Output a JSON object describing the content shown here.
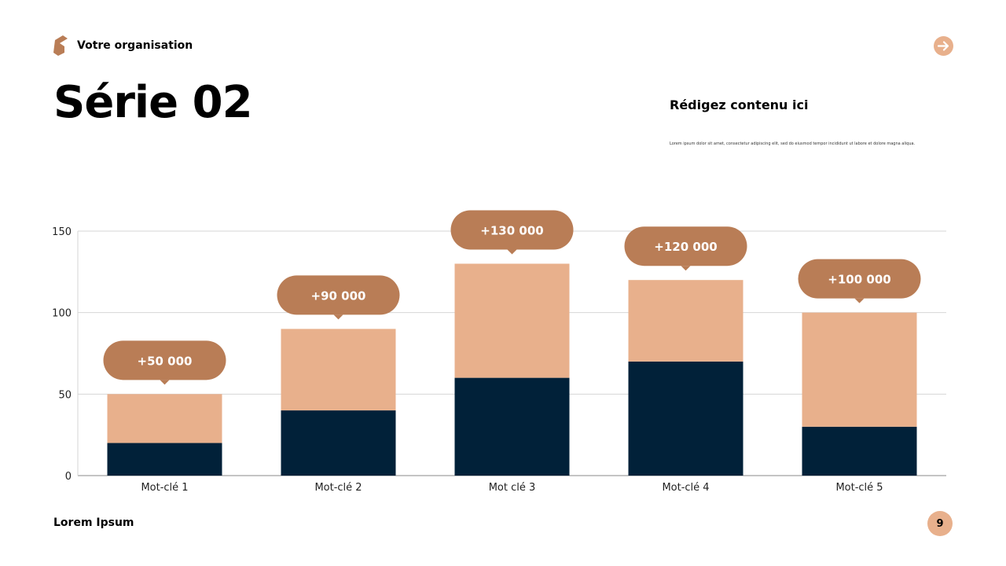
{
  "header": {
    "org_name": "Votre organisation",
    "title": "Série 02",
    "next_icon": "arrow-right-icon"
  },
  "side": {
    "heading": "Rédigez contenu ici",
    "text": "Lorem ipsum dolor sit amet, consectetur adipiscing elit, sed do eiusmod tempor incididunt ut labore et dolore magna aliqua."
  },
  "footer": {
    "text": "Lorem Ipsum",
    "page_number": "9"
  },
  "colors": {
    "accent": "#b97d56",
    "light": "#e8b08c",
    "dark": "#012139"
  },
  "chart_data": {
    "type": "bar",
    "stacked": true,
    "categories": [
      "Mot-clé 1",
      "Mot-clé 2",
      "Mot clé 3",
      "Mot-clé 4",
      "Mot-clé 5"
    ],
    "series": [
      {
        "values": [
          20,
          40,
          60,
          70,
          30
        ],
        "color": "#012139"
      },
      {
        "values": [
          30,
          50,
          70,
          50,
          70
        ],
        "color": "#e8b08c"
      }
    ],
    "annotations": [
      "+50 000",
      "+90 000",
      "+130 000",
      "+120 000",
      "+100 000"
    ],
    "ylim": [
      0,
      150
    ],
    "yticks": [
      "0",
      "50",
      "100",
      "150"
    ],
    "grid": true
  }
}
